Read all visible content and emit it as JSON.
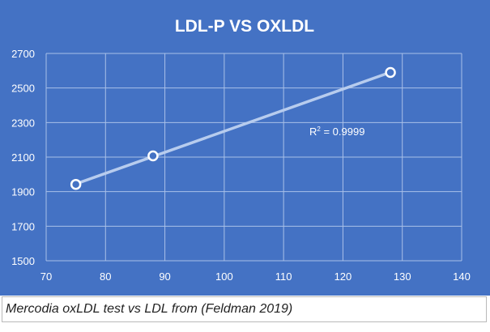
{
  "colors": {
    "plot_background": "#4472C4",
    "gridline": "#A9C0E8",
    "trendline": "#B7CCEE",
    "marker_fill": "#4472C4",
    "marker_stroke": "#FFFFFF",
    "text": "#FFFFFF"
  },
  "chart_data": {
    "type": "scatter",
    "title": "LDL-P VS OXLDL",
    "xlabel": "",
    "ylabel": "",
    "xlim": [
      70,
      140
    ],
    "ylim": [
      1500,
      2700
    ],
    "x_ticks": [
      70,
      80,
      90,
      100,
      110,
      120,
      130,
      140
    ],
    "y_ticks": [
      1500,
      1700,
      1900,
      2100,
      2300,
      2500,
      2700
    ],
    "x_tick_labels": [
      "70",
      "80",
      "90",
      "100",
      "110",
      "120",
      "130",
      "140"
    ],
    "y_tick_labels": [
      "1500",
      "1700",
      "1900",
      "2100",
      "2300",
      "2500",
      "2700"
    ],
    "grid": true,
    "series": [
      {
        "points": [
          {
            "x": 75,
            "y": 1942
          },
          {
            "x": 88,
            "y": 2107
          },
          {
            "x": 128,
            "y": 2590
          }
        ],
        "trendline": "linear"
      }
    ],
    "annotations": [
      {
        "r2_prefix": "R",
        "r2_sup": "2",
        "r2_value": " = 0.9999"
      }
    ]
  },
  "caption": "Mercodia oxLDL test vs LDL from (Feldman 2019)"
}
